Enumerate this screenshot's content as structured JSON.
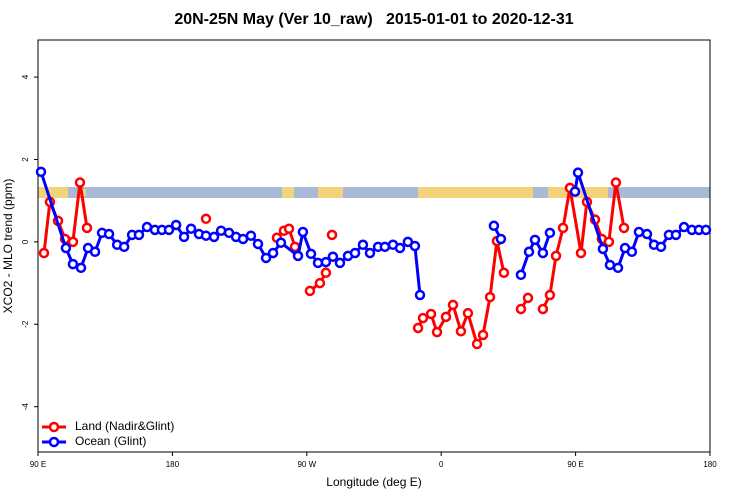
{
  "chart_data": {
    "type": "line",
    "title": "20N-25N May (Ver 10_raw)   2015-01-01 to 2020-12-31",
    "x_label": "Longitude (deg E)",
    "y_label": "XCO2 - MLO trend (ppm)",
    "xlim": [
      90,
      540
    ],
    "xticks": [
      {
        "value": 90,
        "label": "90 E"
      },
      180,
      {
        "value": 270,
        "label": "90 W"
      },
      {
        "value": 360,
        "label": "0"
      },
      {
        "value": 450,
        "label": "90 E"
      },
      {
        "value": 540,
        "label": "180"
      }
    ],
    "ylim": [
      -5.1,
      4.9
    ],
    "yticks": [
      -4,
      -2,
      0,
      2,
      4
    ],
    "legend": "bottomleft",
    "series": [
      {
        "name": "Land (Nadir&Glint)",
        "color": "#ff0000",
        "x": [
          94.0,
          98.0,
          103.4,
          108.1,
          113.4,
          118.1,
          122.8,
          null,
          202.5,
          null,
          250.0,
          254.7,
          258.1,
          262.1,
          null,
          272.1,
          278.8,
          282.8,
          null,
          286.9,
          null,
          344.5,
          347.8,
          353.2,
          357.2,
          363.2,
          367.9,
          373.2,
          377.9,
          384.0,
          388.0,
          392.7,
          397.3,
          402.0,
          null,
          413.4,
          418.1,
          null,
          428.1,
          432.8,
          436.9,
          441.6,
          446.2,
          453.6,
          457.6,
          463.0,
          467.6,
          472.3,
          477.0,
          482.4
        ],
        "values": [
          -0.27,
          0.97,
          0.51,
          0.07,
          0.0,
          1.44,
          0.34,
          null,
          0.56,
          null,
          0.1,
          0.27,
          0.32,
          -0.12,
          null,
          -1.19,
          -1.0,
          -0.75,
          null,
          0.17,
          null,
          -2.09,
          -1.85,
          -1.75,
          -2.19,
          -1.82,
          -1.53,
          -2.17,
          -1.73,
          -2.48,
          -2.26,
          -1.34,
          0.02,
          -0.75,
          null,
          -1.63,
          -1.36,
          null,
          -1.63,
          -1.29,
          -0.34,
          0.34,
          1.31,
          -0.27,
          0.97,
          0.54,
          0.07,
          0.0,
          1.44,
          0.34
        ]
      },
      {
        "name": "Ocean (Glint)",
        "color": "#0000ff",
        "x": [
          92.0,
          108.7,
          113.4,
          118.8,
          123.5,
          128.2,
          132.9,
          137.6,
          143.0,
          147.7,
          153.0,
          157.6,
          163.0,
          168.3,
          173.0,
          177.7,
          182.5,
          187.8,
          192.5,
          197.8,
          202.5,
          207.9,
          212.6,
          217.9,
          222.6,
          227.3,
          232.6,
          237.3,
          242.7,
          247.4,
          252.7,
          264.1,
          267.4,
          272.8,
          277.5,
          282.8,
          287.5,
          292.2,
          297.6,
          302.3,
          307.6,
          312.3,
          317.7,
          322.3,
          327.7,
          332.4,
          337.7,
          342.4,
          345.8,
          null,
          395.3,
          400.0,
          null,
          413.4,
          418.8,
          422.8,
          428.1,
          432.8,
          null,
          449.6,
          451.6,
          468.3,
          473.0,
          478.4,
          483.1,
          487.7,
          492.4,
          497.8,
          502.5,
          507.2,
          512.5,
          517.2,
          522.6,
          527.9,
          532.6,
          537.3
        ],
        "values": [
          1.7,
          -0.15,
          -0.54,
          -0.63,
          -0.15,
          -0.24,
          0.22,
          0.19,
          -0.07,
          -0.12,
          0.17,
          0.17,
          0.36,
          0.29,
          0.29,
          0.29,
          0.41,
          0.12,
          0.32,
          0.19,
          0.15,
          0.12,
          0.27,
          0.22,
          0.12,
          0.07,
          0.15,
          -0.05,
          -0.39,
          -0.27,
          -0.02,
          -0.34,
          0.24,
          -0.29,
          -0.51,
          -0.49,
          -0.36,
          -0.51,
          -0.34,
          -0.27,
          -0.07,
          -0.27,
          -0.12,
          -0.12,
          -0.07,
          -0.15,
          0.0,
          -0.1,
          -1.29,
          null,
          0.39,
          0.07,
          null,
          -0.8,
          -0.24,
          0.05,
          -0.27,
          0.22,
          null,
          1.22,
          1.68,
          -0.17,
          -0.56,
          -0.63,
          -0.15,
          -0.24,
          0.24,
          0.19,
          -0.07,
          -0.12,
          0.17,
          0.17,
          0.36,
          0.29,
          0.29,
          0.29
        ]
      }
    ]
  }
}
